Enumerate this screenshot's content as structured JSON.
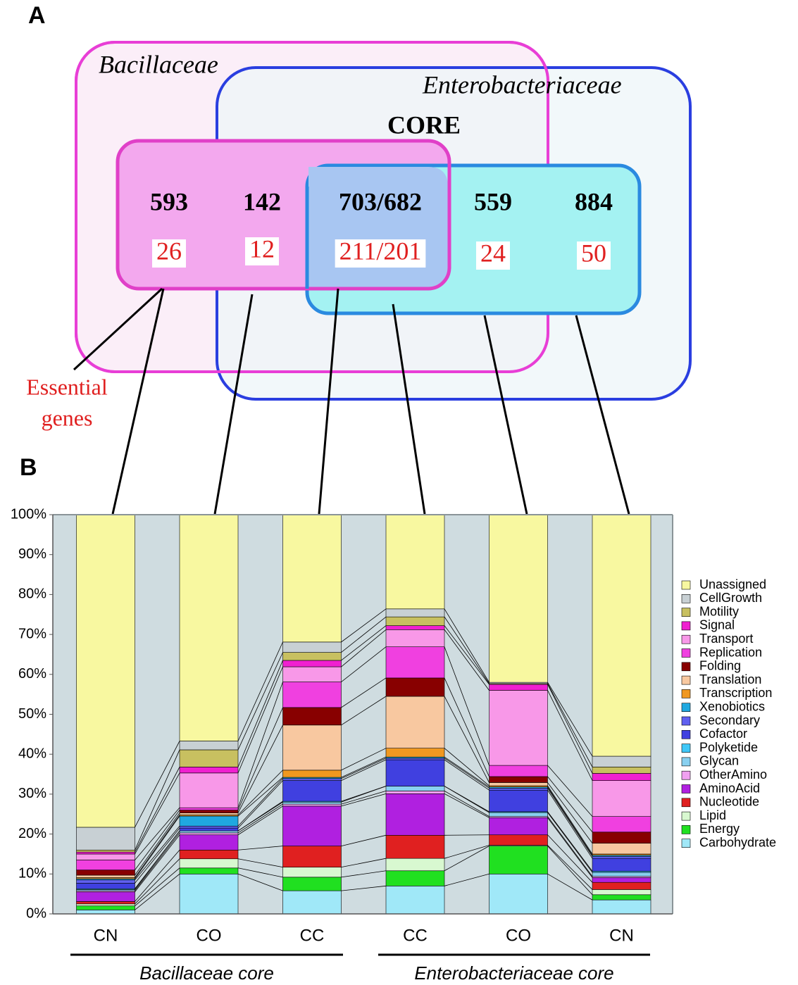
{
  "panel_labels": [
    "A",
    "B"
  ],
  "venn": {
    "outer_left": "Bacillaceae",
    "outer_right": "Enterobacteriaceae",
    "core": "CORE",
    "counts": [
      593,
      142,
      "703/682",
      559,
      884
    ],
    "essential": [
      26,
      12,
      "211/201",
      24,
      50
    ],
    "essential_label": [
      "Essential",
      "genes"
    ]
  },
  "chart_data": {
    "type": "stacked_bar",
    "categories": [
      "CN",
      "CO",
      "CC",
      "CC",
      "CO",
      "CN"
    ],
    "groups": [
      "Bacillaceae core",
      "Enterobacteriaceae core"
    ],
    "ylim": [
      0,
      100
    ],
    "yticks": [
      {
        "value": 0,
        "label": "0%"
      },
      {
        "value": 10,
        "label": "10%"
      },
      {
        "value": 20,
        "label": "20%"
      },
      {
        "value": 30,
        "label": "30%"
      },
      {
        "value": 40,
        "label": "40%"
      },
      {
        "value": 50,
        "label": "50%"
      },
      {
        "value": 60,
        "label": "60%"
      },
      {
        "value": 70,
        "label": "70%"
      },
      {
        "value": 80,
        "label": "80%"
      },
      {
        "value": 90,
        "label": "90%"
      },
      {
        "value": 100,
        "label": "100%"
      }
    ],
    "series": [
      {
        "name": "Carbohydrate",
        "color": "#a0e8f8",
        "values": [
          1,
          10,
          5.8,
          7,
          10,
          3.5
        ]
      },
      {
        "name": "Energy",
        "color": "#20e020",
        "values": [
          1,
          1.5,
          3.4,
          3.8,
          7,
          1.3
        ]
      },
      {
        "name": "Lipid",
        "color": "#d8f8d0",
        "values": [
          0.5,
          2.3,
          2.5,
          3.1,
          0.2,
          1.3
        ]
      },
      {
        "name": "Nucleotide",
        "color": "#e02020",
        "values": [
          0.6,
          2.2,
          5.3,
          5.8,
          2.6,
          1.8
        ]
      },
      {
        "name": "AminoAcid",
        "color": "#b020e0",
        "values": [
          2.4,
          3.8,
          10,
          10.4,
          4.3,
          1.2
        ]
      },
      {
        "name": "OtherAmino",
        "color": "#f0a0f0",
        "values": [
          0.3,
          0.5,
          0.5,
          0.7,
          0.3,
          0.3
        ]
      },
      {
        "name": "Glycan",
        "color": "#88d0f0",
        "values": [
          0.3,
          0.5,
          0.5,
          1.2,
          1,
          1
        ]
      },
      {
        "name": "Polyketide",
        "color": "#40c8f8",
        "values": [
          0.2,
          0,
          0.2,
          0,
          0.2,
          0.3
        ]
      },
      {
        "name": "Cofactor",
        "color": "#4040e0",
        "values": [
          1.4,
          0.7,
          5.2,
          6.6,
          5.4,
          3.2
        ]
      },
      {
        "name": "Secondary",
        "color": "#6060f0",
        "values": [
          0.8,
          0.5,
          0.5,
          0.4,
          0.5,
          0.5
        ]
      },
      {
        "name": "Xenobiotics",
        "color": "#20a8e0",
        "values": [
          0.3,
          2.5,
          0.3,
          0.3,
          0.3,
          0.3
        ]
      },
      {
        "name": "Transcription",
        "color": "#f09820",
        "values": [
          0.3,
          0.3,
          1.8,
          2.2,
          0.3,
          0.3
        ]
      },
      {
        "name": "Translation",
        "color": "#f8c8a0",
        "values": [
          0.6,
          0.5,
          11.3,
          13,
          0.8,
          2.7
        ]
      },
      {
        "name": "Folding",
        "color": "#880000",
        "values": [
          1.3,
          0.7,
          4.4,
          4.6,
          1.5,
          2.8
        ]
      },
      {
        "name": "Replication",
        "color": "#f040e0",
        "values": [
          2.5,
          0.6,
          6.4,
          7.8,
          2.8,
          3.9
        ]
      },
      {
        "name": "Transport",
        "color": "#f898e8",
        "values": [
          1.5,
          8.7,
          3.8,
          4.3,
          18.8,
          9
        ]
      },
      {
        "name": "Signal",
        "color": "#f020d0",
        "values": [
          0.5,
          1.5,
          1.6,
          1,
          1.5,
          1.8
        ]
      },
      {
        "name": "Motility",
        "color": "#c8c060",
        "values": [
          0.5,
          4.3,
          2,
          2.2,
          0.2,
          1.6
        ]
      },
      {
        "name": "CellGrowth",
        "color": "#c8d0d4",
        "values": [
          5.7,
          2.2,
          2.6,
          2,
          0.3,
          2.7
        ]
      },
      {
        "name": "Unassigned",
        "color": "#f8f8a0",
        "values": [
          78.3,
          56.7,
          31.9,
          23.6,
          42,
          60.5
        ]
      }
    ]
  }
}
